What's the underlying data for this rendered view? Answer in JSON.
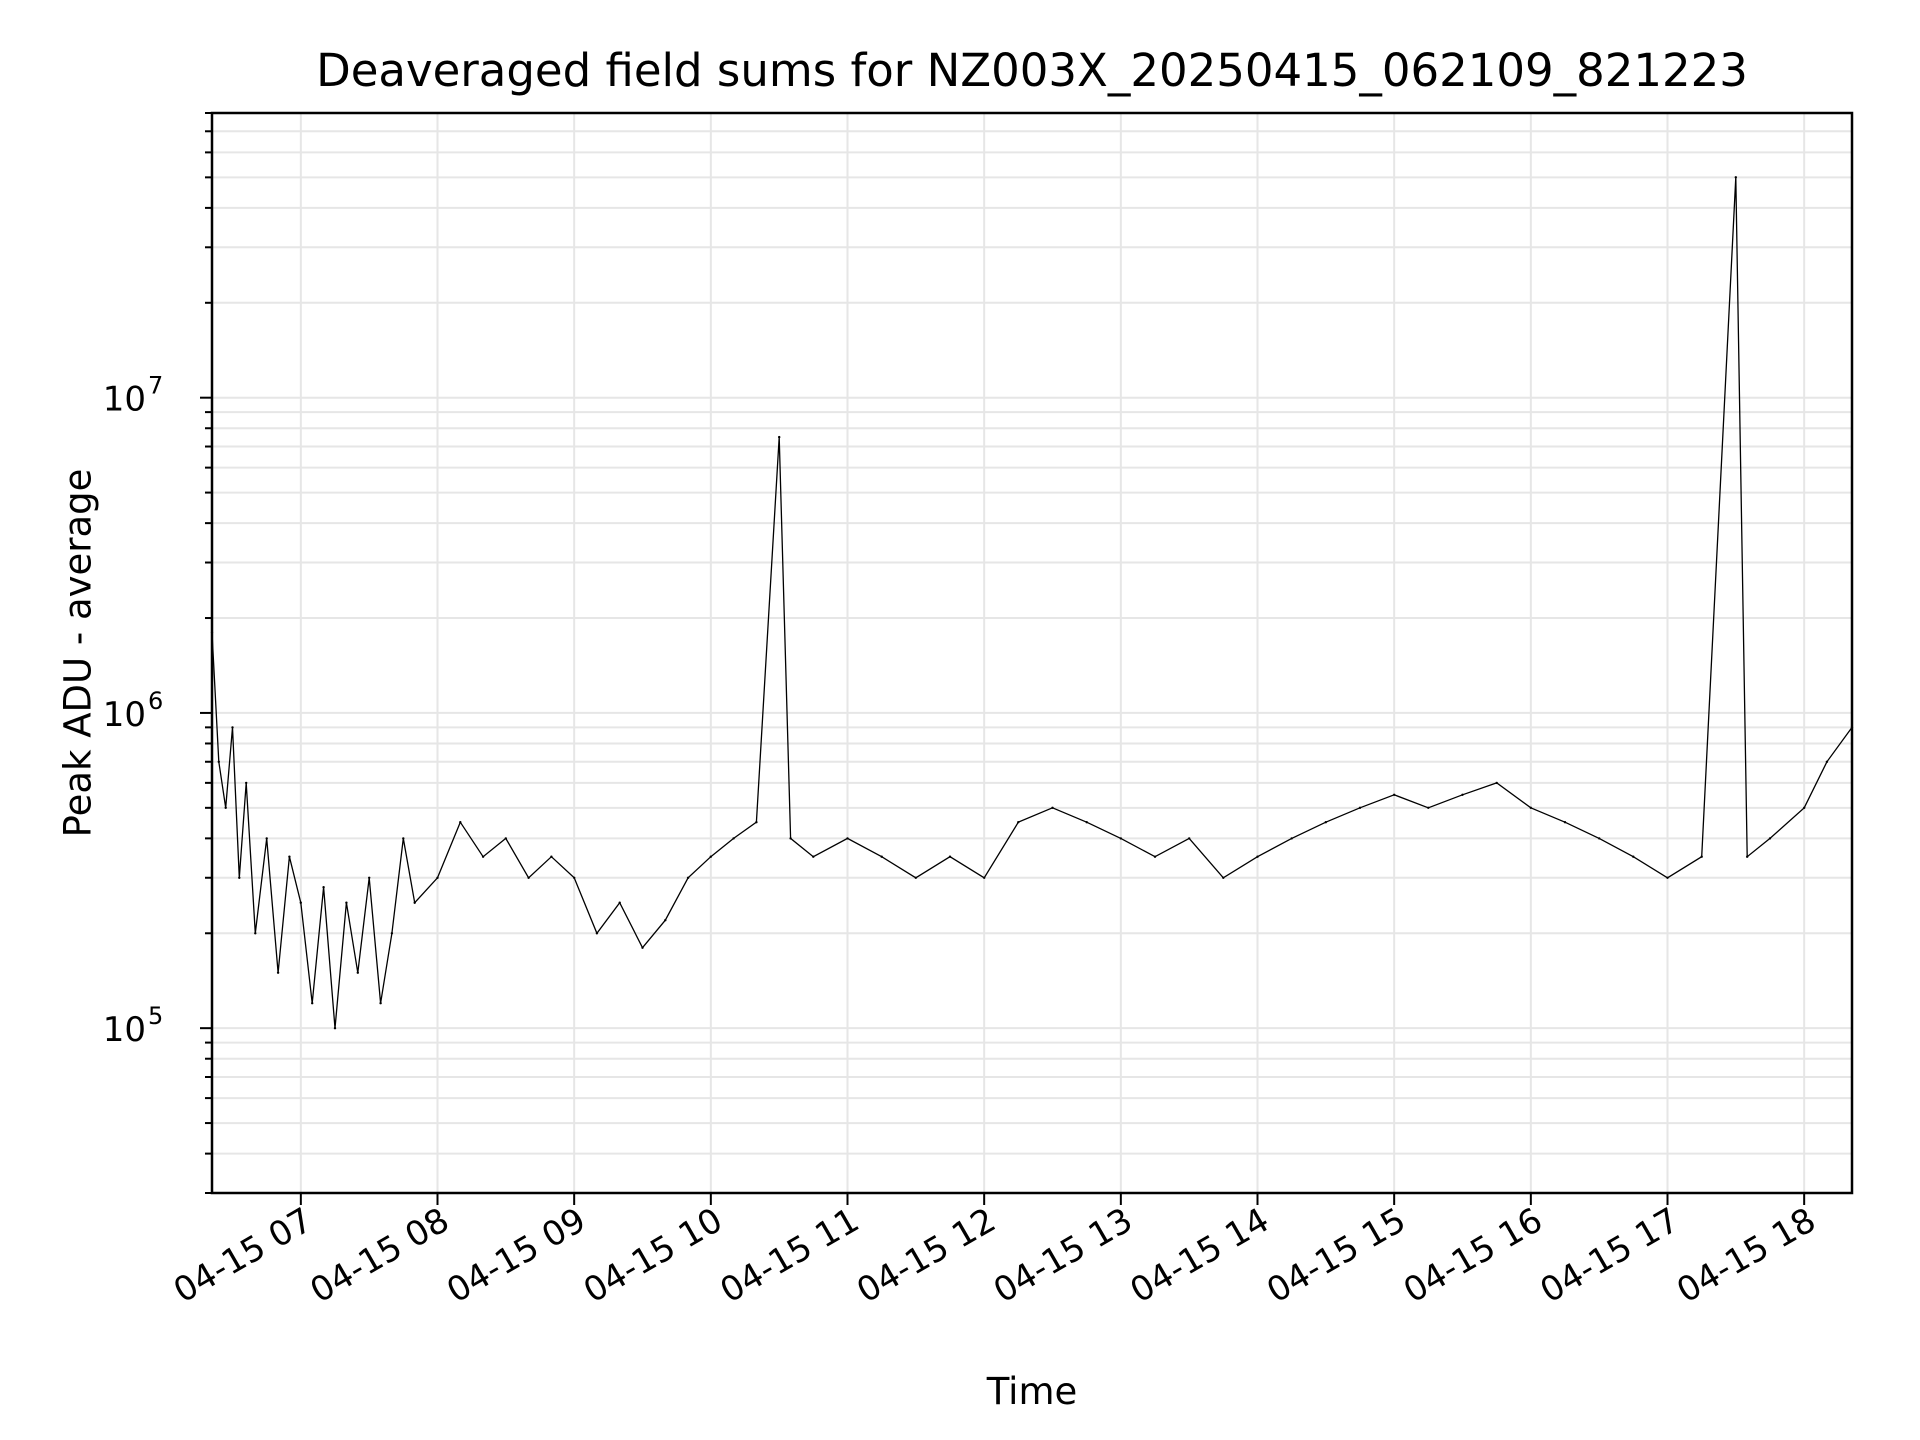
{
  "chart_data": {
    "type": "line",
    "title": "Deaveraged field sums for NZ003X_20250415_062109_821223",
    "xlabel": "Time",
    "ylabel": "Peak ADU - average",
    "x_axis": {
      "kind": "datetime",
      "range": [
        "2025-04-15 06:21",
        "2025-04-15 18:21"
      ],
      "ticks": [
        {
          "value": "2025-04-15 07:00",
          "label": "04-15 07"
        },
        {
          "value": "2025-04-15 08:00",
          "label": "04-15 08"
        },
        {
          "value": "2025-04-15 09:00",
          "label": "04-15 09"
        },
        {
          "value": "2025-04-15 10:00",
          "label": "04-15 10"
        },
        {
          "value": "2025-04-15 11:00",
          "label": "04-15 11"
        },
        {
          "value": "2025-04-15 12:00",
          "label": "04-15 12"
        },
        {
          "value": "2025-04-15 13:00",
          "label": "04-15 13"
        },
        {
          "value": "2025-04-15 14:00",
          "label": "04-15 14"
        },
        {
          "value": "2025-04-15 15:00",
          "label": "04-15 15"
        },
        {
          "value": "2025-04-15 16:00",
          "label": "04-15 16"
        },
        {
          "value": "2025-04-15 17:00",
          "label": "04-15 17"
        },
        {
          "value": "2025-04-15 18:00",
          "label": "04-15 18"
        }
      ]
    },
    "y_axis": {
      "scale": "log",
      "range": [
        30000,
        80000000
      ],
      "ticks": [
        {
          "value": 100000,
          "base": "10",
          "exp": "5"
        },
        {
          "value": 1000000,
          "base": "10",
          "exp": "6"
        },
        {
          "value": 10000000,
          "base": "10",
          "exp": "7"
        }
      ]
    },
    "grid": true,
    "legend": "none",
    "series": [
      {
        "color": "#000000",
        "points": [
          [
            "2025-04-15 06:21",
            1800000
          ],
          [
            "2025-04-15 06:24",
            700000
          ],
          [
            "2025-04-15 06:27",
            500000
          ],
          [
            "2025-04-15 06:30",
            900000
          ],
          [
            "2025-04-15 06:33",
            300000
          ],
          [
            "2025-04-15 06:36",
            600000
          ],
          [
            "2025-04-15 06:40",
            200000
          ],
          [
            "2025-04-15 06:45",
            400000
          ],
          [
            "2025-04-15 06:50",
            150000
          ],
          [
            "2025-04-15 06:55",
            350000
          ],
          [
            "2025-04-15 07:00",
            250000
          ],
          [
            "2025-04-15 07:05",
            120000
          ],
          [
            "2025-04-15 07:10",
            280000
          ],
          [
            "2025-04-15 07:15",
            100000
          ],
          [
            "2025-04-15 07:20",
            250000
          ],
          [
            "2025-04-15 07:25",
            150000
          ],
          [
            "2025-04-15 07:30",
            300000
          ],
          [
            "2025-04-15 07:35",
            120000
          ],
          [
            "2025-04-15 07:40",
            200000
          ],
          [
            "2025-04-15 07:45",
            400000
          ],
          [
            "2025-04-15 07:50",
            250000
          ],
          [
            "2025-04-15 08:00",
            300000
          ],
          [
            "2025-04-15 08:10",
            450000
          ],
          [
            "2025-04-15 08:20",
            350000
          ],
          [
            "2025-04-15 08:30",
            400000
          ],
          [
            "2025-04-15 08:40",
            300000
          ],
          [
            "2025-04-15 08:50",
            350000
          ],
          [
            "2025-04-15 09:00",
            300000
          ],
          [
            "2025-04-15 09:10",
            200000
          ],
          [
            "2025-04-15 09:20",
            250000
          ],
          [
            "2025-04-15 09:30",
            180000
          ],
          [
            "2025-04-15 09:40",
            220000
          ],
          [
            "2025-04-15 09:50",
            300000
          ],
          [
            "2025-04-15 10:00",
            350000
          ],
          [
            "2025-04-15 10:10",
            400000
          ],
          [
            "2025-04-15 10:20",
            450000
          ],
          [
            "2025-04-15 10:30",
            7500000
          ],
          [
            "2025-04-15 10:35",
            400000
          ],
          [
            "2025-04-15 10:45",
            350000
          ],
          [
            "2025-04-15 11:00",
            400000
          ],
          [
            "2025-04-15 11:15",
            350000
          ],
          [
            "2025-04-15 11:30",
            300000
          ],
          [
            "2025-04-15 11:45",
            350000
          ],
          [
            "2025-04-15 12:00",
            300000
          ],
          [
            "2025-04-15 12:15",
            450000
          ],
          [
            "2025-04-15 12:30",
            500000
          ],
          [
            "2025-04-15 12:45",
            450000
          ],
          [
            "2025-04-15 13:00",
            400000
          ],
          [
            "2025-04-15 13:15",
            350000
          ],
          [
            "2025-04-15 13:30",
            400000
          ],
          [
            "2025-04-15 13:45",
            300000
          ],
          [
            "2025-04-15 14:00",
            350000
          ],
          [
            "2025-04-15 14:15",
            400000
          ],
          [
            "2025-04-15 14:30",
            450000
          ],
          [
            "2025-04-15 14:45",
            500000
          ],
          [
            "2025-04-15 15:00",
            550000
          ],
          [
            "2025-04-15 15:15",
            500000
          ],
          [
            "2025-04-15 15:30",
            550000
          ],
          [
            "2025-04-15 15:45",
            600000
          ],
          [
            "2025-04-15 16:00",
            500000
          ],
          [
            "2025-04-15 16:15",
            450000
          ],
          [
            "2025-04-15 16:30",
            400000
          ],
          [
            "2025-04-15 16:45",
            350000
          ],
          [
            "2025-04-15 17:00",
            300000
          ],
          [
            "2025-04-15 17:15",
            350000
          ],
          [
            "2025-04-15 17:30",
            50000000
          ],
          [
            "2025-04-15 17:35",
            350000
          ],
          [
            "2025-04-15 17:45",
            400000
          ],
          [
            "2025-04-15 18:00",
            500000
          ],
          [
            "2025-04-15 18:10",
            700000
          ],
          [
            "2025-04-15 18:21",
            900000
          ]
        ]
      }
    ]
  }
}
